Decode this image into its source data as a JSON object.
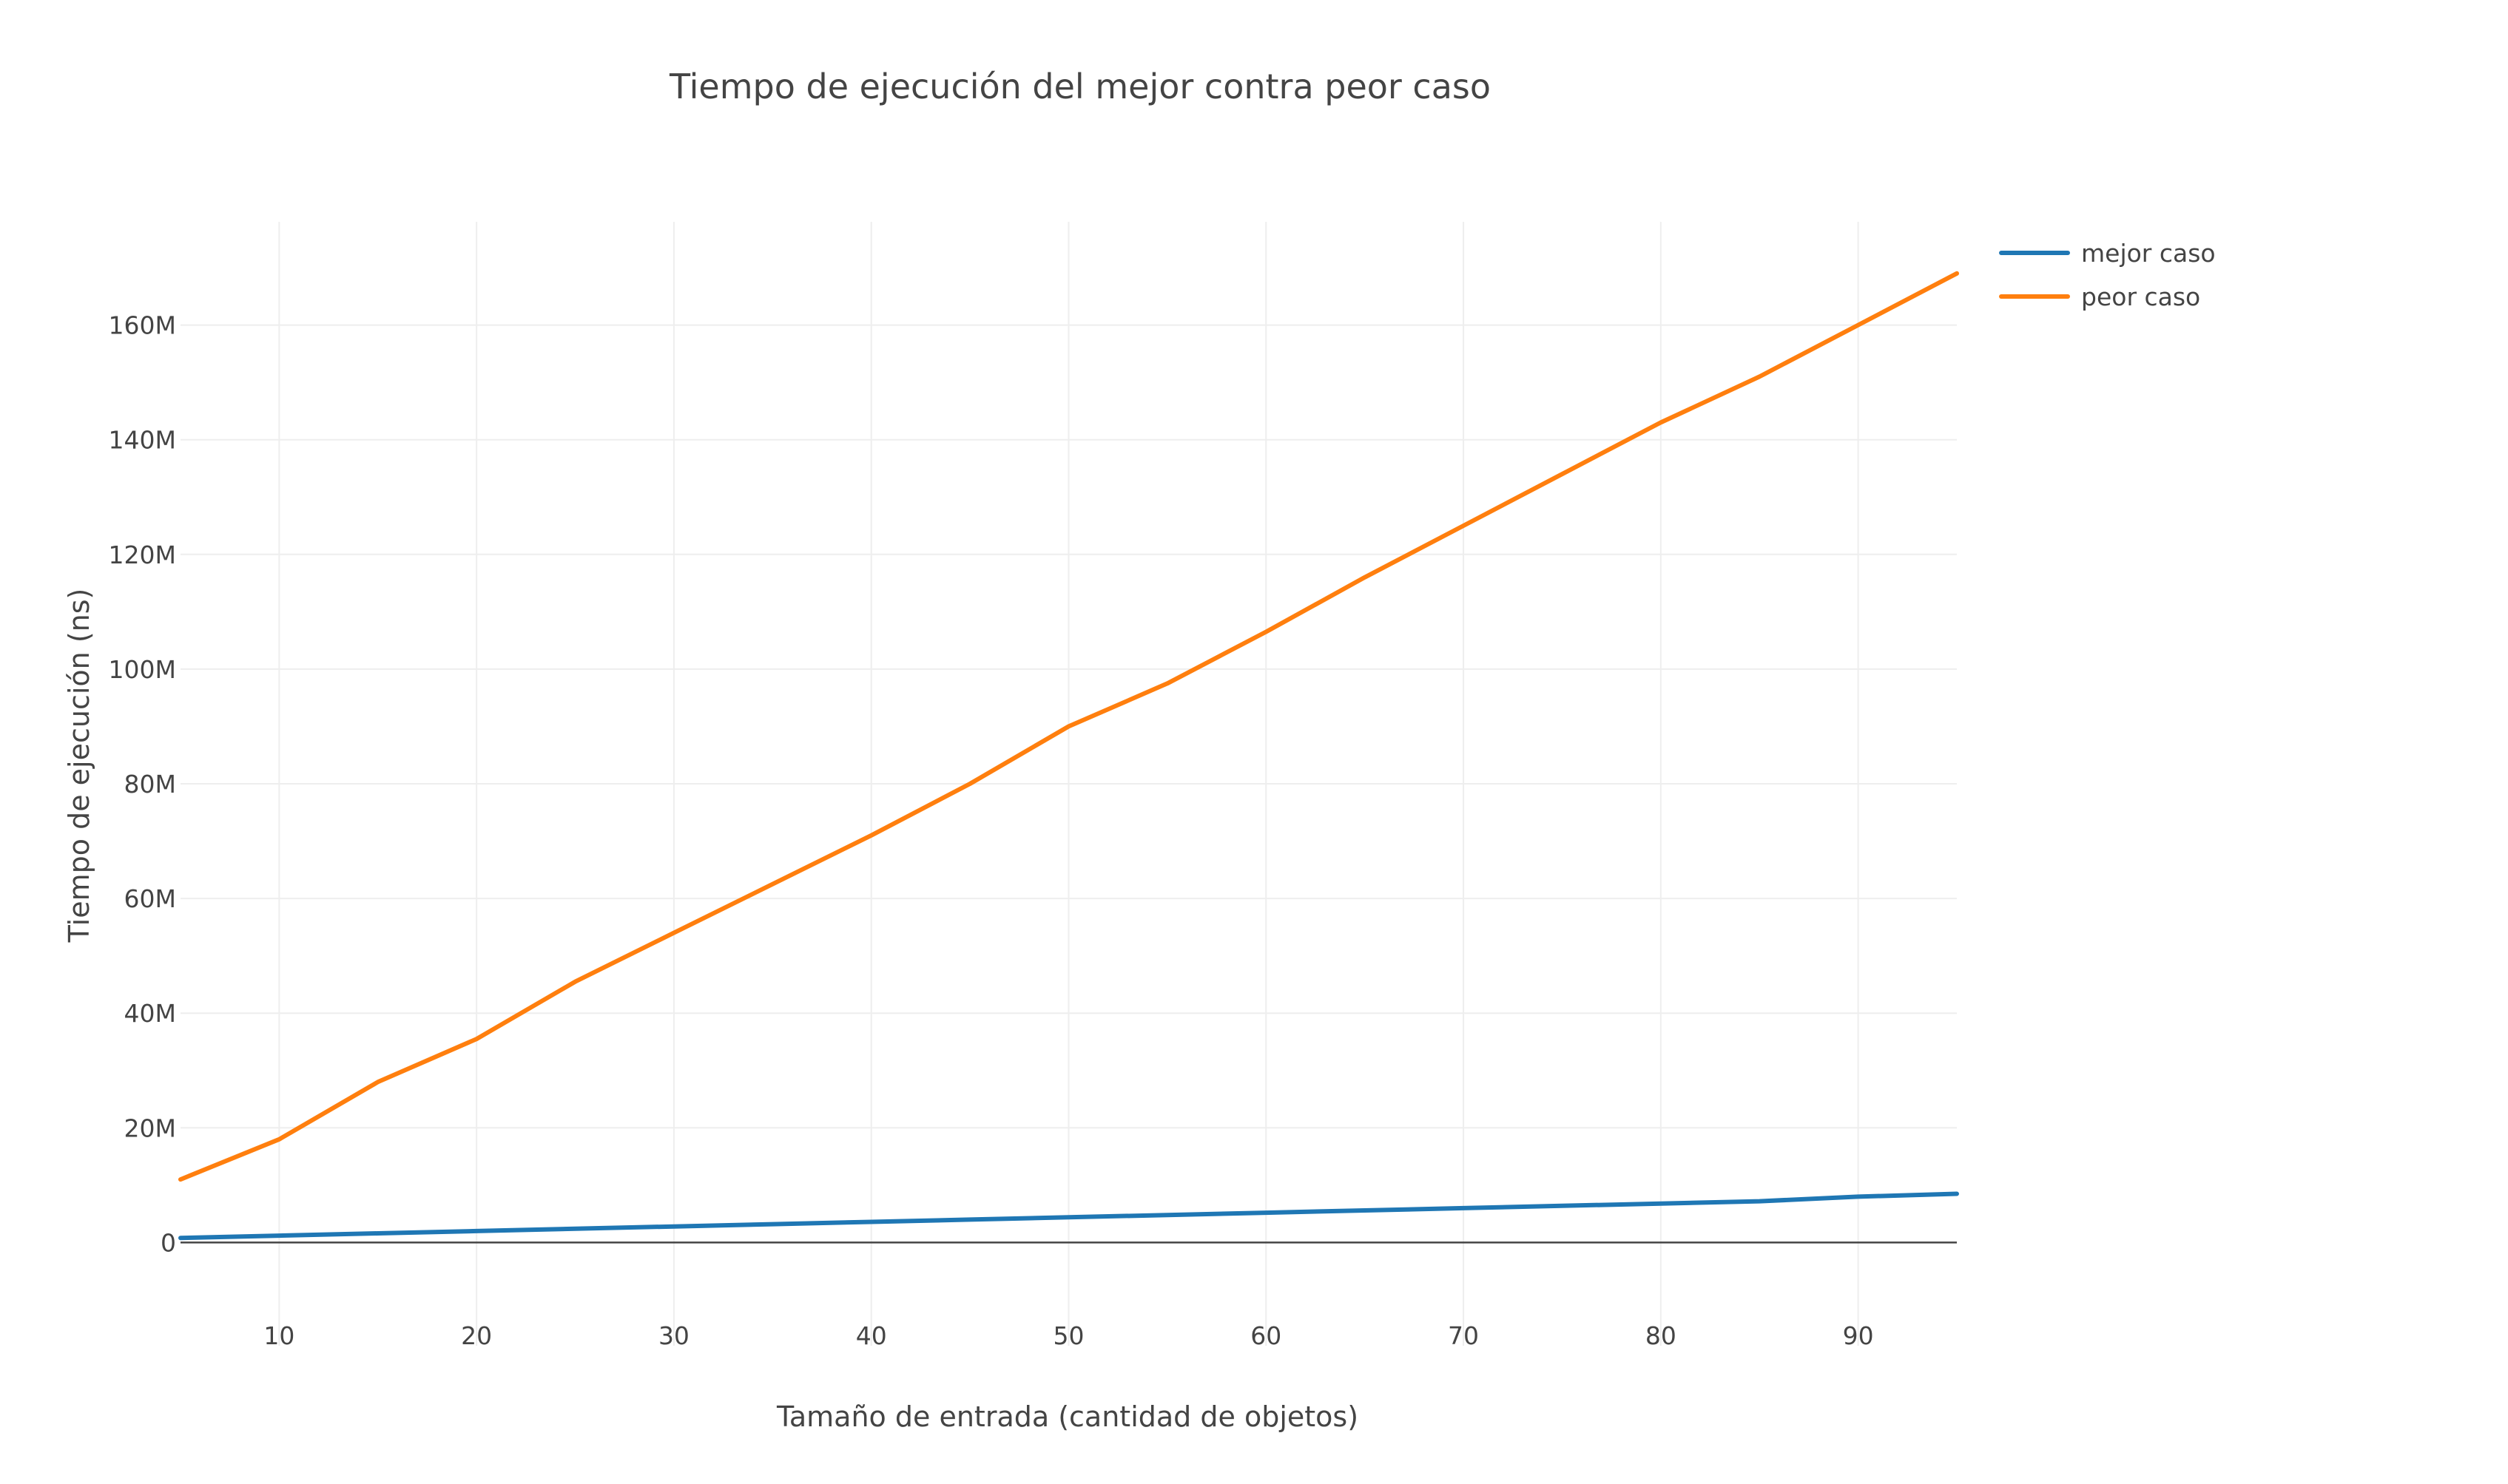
{
  "chart_data": {
    "type": "line",
    "title": "Tiempo de ejecución del mejor contra peor caso",
    "xlabel": "Tamaño de entrada (cantidad de objetos)",
    "ylabel": "Tiempo de ejecución (ns)",
    "x": [
      5,
      10,
      15,
      20,
      25,
      30,
      35,
      40,
      45,
      50,
      55,
      60,
      65,
      70,
      75,
      80,
      85,
      90,
      95
    ],
    "xlim": [
      5,
      95
    ],
    "ylim": [
      -18000000,
      178000000
    ],
    "x_ticks": [
      10,
      20,
      30,
      40,
      50,
      60,
      70,
      80,
      90
    ],
    "x_tick_labels": [
      "10",
      "20",
      "30",
      "40",
      "50",
      "60",
      "70",
      "80",
      "90"
    ],
    "y_ticks": [
      0,
      20000000,
      40000000,
      60000000,
      80000000,
      100000000,
      120000000,
      140000000,
      160000000
    ],
    "y_tick_labels": [
      "0",
      "20M",
      "40M",
      "60M",
      "80M",
      "100M",
      "120M",
      "140M",
      "160M"
    ],
    "grid": true,
    "legend_position": "top-right",
    "series": [
      {
        "name": "mejor caso",
        "color": "#1f77b4",
        "values": [
          800000,
          1200000,
          1600000,
          2000000,
          2400000,
          2800000,
          3200000,
          3600000,
          4000000,
          4400000,
          4800000,
          5200000,
          5600000,
          6000000,
          6400000,
          6800000,
          7200000,
          8000000,
          8500000
        ]
      },
      {
        "name": "peor caso",
        "color": "#ff7f0e",
        "values": [
          11000000,
          18000000,
          28000000,
          35500000,
          45500000,
          54000000,
          62500000,
          71000000,
          80000000,
          90000000,
          97500000,
          106500000,
          116000000,
          125000000,
          134000000,
          143000000,
          151000000,
          160000000,
          169000000
        ]
      }
    ]
  }
}
